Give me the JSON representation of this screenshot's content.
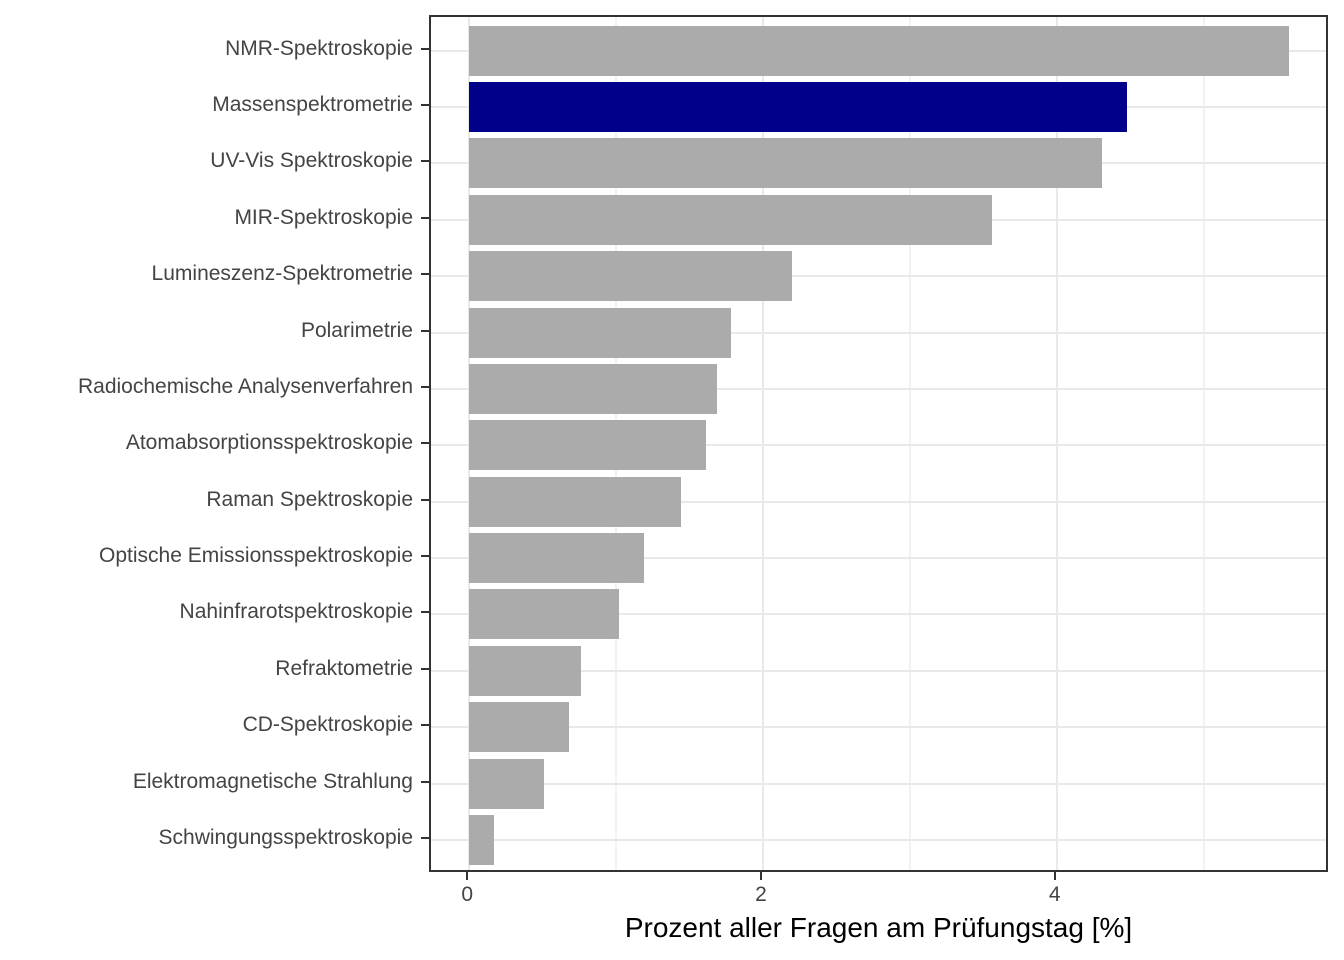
{
  "chart_data": {
    "type": "bar",
    "orientation": "horizontal",
    "title": "",
    "xlabel": "Prozent aller Fragen am Prüfungstag [%]",
    "ylabel": "",
    "categories": [
      "NMR-Spektroskopie",
      "Massenspektrometrie",
      "UV-Vis Spektroskopie",
      "MIR-Spektroskopie",
      "Lumineszenz-Spektrometrie",
      "Polarimetrie",
      "Radiochemische Analysenverfahren",
      "Atomabsorptionsspektroskopie",
      "Raman Spektroskopie",
      "Optische Emissionsspektroskopie",
      "Nahinfrarotspektroskopie",
      "Refraktometrie",
      "CD-Spektroskopie",
      "Elektromagnetische Strahlung",
      "Schwingungsspektroskopie"
    ],
    "values": [
      5.58,
      4.48,
      4.31,
      3.56,
      2.2,
      1.78,
      1.69,
      1.61,
      1.44,
      1.19,
      1.02,
      0.76,
      0.68,
      0.51,
      0.17
    ],
    "xlim": [
      -0.26,
      5.86
    ],
    "xticks": [
      0,
      2,
      4
    ],
    "xtick_labels": [
      "0",
      "2",
      "4"
    ],
    "minor_xticks": [
      1,
      3,
      5
    ],
    "grid": true,
    "legend": "none",
    "bar_color": "#ABABAB",
    "highlight_category": "Massenspektrometrie",
    "highlight_color": "#00008B",
    "axis_text_color": "#444444",
    "axis_title_color": "#000000",
    "panel_border_color": "#333333",
    "major_grid_color": "#e9e9e9",
    "minor_grid_color": "#f2f2f2"
  }
}
